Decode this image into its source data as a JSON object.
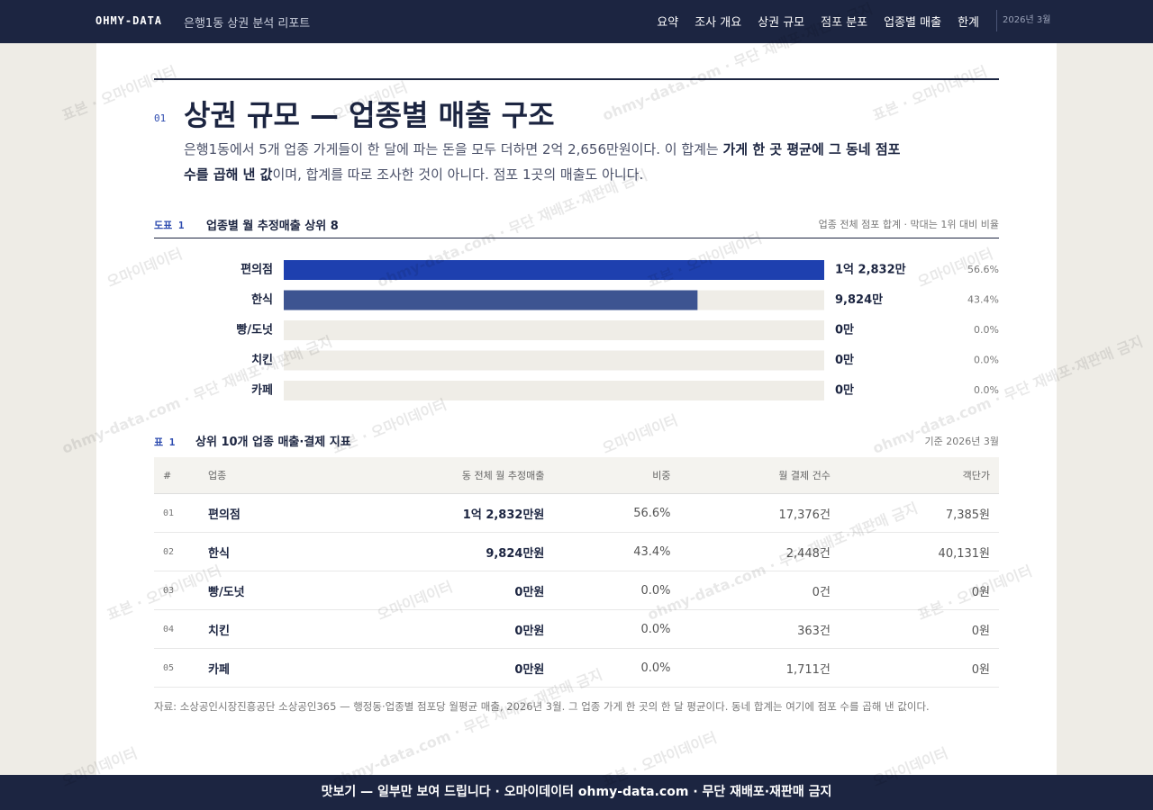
{
  "header": {
    "brand": "OHMY-DATA",
    "subtitle": "은행1동 상권 분석 리포트",
    "nav": [
      "요약",
      "조사 개요",
      "상권 규모",
      "점포 분포",
      "업종별 매출",
      "한계"
    ],
    "date": "2026년 3월"
  },
  "section": {
    "number": "01",
    "title": "상권 규모 — 업종별 매출 구조",
    "lead": [
      "은행1동에서 5개 업종 가게들이 한 달에 파는 돈을 모두 더하면 2억 2,656만원이다. 이 합계는 ",
      "가게 한 곳 평균에 그 동네 점포 수를 곱해 낸 값",
      "이며, 합계를 따로 조사한 것이 아니다. 점포 1곳의 매출도 아니다."
    ]
  },
  "chart_data": {
    "type": "bar",
    "orientation": "horizontal",
    "label": "도표 1",
    "title": "업종별 월 추정매출 상위 8",
    "note": "업종 전체 점포 합계 · 막대는 1위 대비 비율",
    "categories": [
      "편의점",
      "한식",
      "빵/도넛",
      "치킨",
      "카페"
    ],
    "values": [
      12832,
      9824,
      0,
      0,
      0
    ],
    "value_labels": [
      "1억 2,832만",
      "9,824만",
      "0만",
      "0만",
      "0만"
    ],
    "shares": [
      56.6,
      43.4,
      0.0,
      0.0,
      0.0
    ],
    "share_labels": [
      "56.6%",
      "43.4%",
      "0.0%",
      "0.0%",
      "0.0%"
    ],
    "colors": [
      "#1e40af",
      "#3d5491",
      "#3d5491",
      "#8790a8",
      "#8790a8"
    ],
    "xlim": [
      0,
      12832
    ]
  },
  "table": {
    "label": "표 1",
    "title": "상위 10개 업종 매출·결제 지표",
    "note": "기준 2026년 3월",
    "columns": [
      "#",
      "업종",
      "동 전체 월 추정매출",
      "비중",
      "월 결제 건수",
      "객단가"
    ],
    "rows": [
      [
        "01",
        "편의점",
        "1억 2,832만원",
        "56.6%",
        "17,376건",
        "7,385원"
      ],
      [
        "02",
        "한식",
        "9,824만원",
        "43.4%",
        "2,448건",
        "40,131원"
      ],
      [
        "03",
        "빵/도넛",
        "0만원",
        "0.0%",
        "0건",
        "0원"
      ],
      [
        "04",
        "치킨",
        "0만원",
        "0.0%",
        "363건",
        "0원"
      ],
      [
        "05",
        "카페",
        "0만원",
        "0.0%",
        "1,711건",
        "0원"
      ]
    ]
  },
  "source": "자료: 소상공인시장진흥공단 소상공인365 — 행정동·업종별 점포당 월평균 매출, 2026년 3월. 그 업종 가게 한 곳의 한 달 평균이다. 동네 합계는 여기에 점포 수를 곱해 낸 값이다.",
  "footer": "맛보기 — 일부만 보여 드립니다 · 오마이데이터 ohmy-data.com · 무단 재배포·재판매 금지",
  "watermarks": [
    "표본 · 오마이데이터",
    "오마이데이터",
    "ohmy-data.com · 무단 재배포·재판매 금지"
  ]
}
